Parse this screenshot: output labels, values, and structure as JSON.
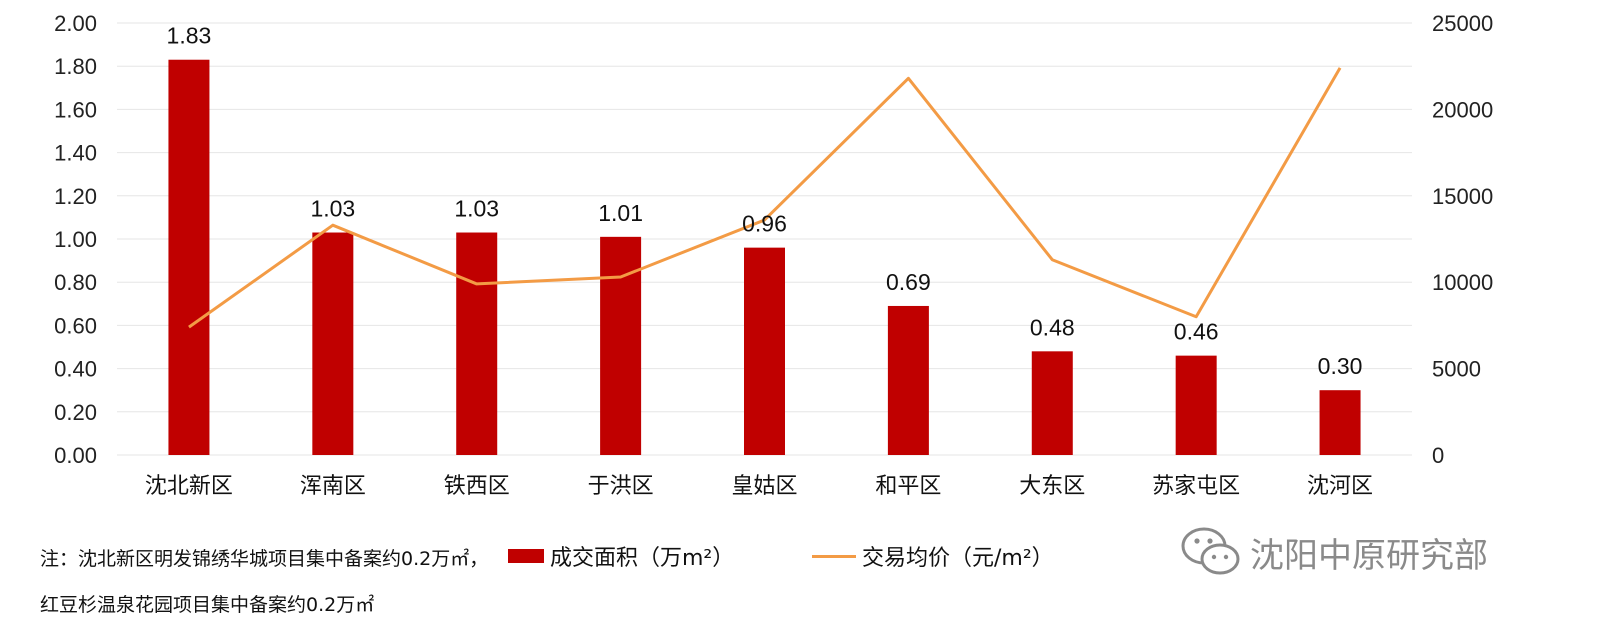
{
  "chart_data": {
    "type": "bar+line",
    "categories": [
      "沈北新区",
      "浑南区",
      "铁西区",
      "于洪区",
      "皇姑区",
      "和平区",
      "大东区",
      "苏家屯区",
      "沈河区"
    ],
    "series": [
      {
        "name": "成交面积（万m²）",
        "type": "bar",
        "axis": "left",
        "color": "#c00000",
        "values": [
          1.83,
          1.03,
          1.03,
          1.01,
          0.96,
          0.69,
          0.48,
          0.46,
          0.3
        ],
        "labels": [
          "1.83",
          "1.03",
          "1.03",
          "1.01",
          "0.96",
          "0.69",
          "0.48",
          "0.46",
          "0.30"
        ]
      },
      {
        "name": "交易均价（元/m²）",
        "type": "line",
        "axis": "right",
        "color": "#f39b45",
        "values": [
          7400,
          13300,
          9900,
          10300,
          13600,
          21800,
          11300,
          8000,
          22400
        ]
      }
    ],
    "ylim_left": [
      0,
      2.0
    ],
    "yticks_left": [
      "0.00",
      "0.20",
      "0.40",
      "0.60",
      "0.80",
      "1.00",
      "1.20",
      "1.40",
      "1.60",
      "1.80",
      "2.00"
    ],
    "ylim_right": [
      0,
      25000
    ],
    "yticks_right": [
      "0",
      "5000",
      "10000",
      "15000",
      "20000",
      "25000"
    ],
    "grid": true,
    "legend_position": "bottom"
  },
  "notes": {
    "line1": "注：沈北新区明发锦绣华城项目集中备案约0.2万㎡，",
    "line2": "红豆杉温泉花园项目集中备案约0.2万㎡"
  },
  "legend": {
    "bar_label": "成交面积（万m²）",
    "line_label": "交易均价（元/m²）"
  },
  "watermark": {
    "text": "沈阳中原研究部",
    "icon": "wechat-icon"
  }
}
